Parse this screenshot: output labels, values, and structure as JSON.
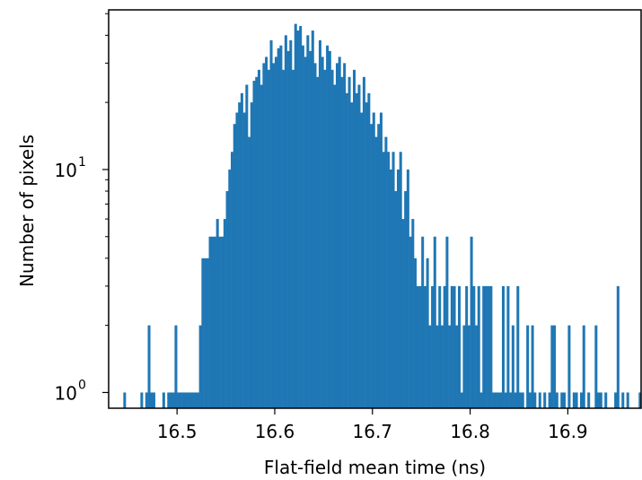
{
  "chart_data": {
    "type": "bar",
    "title": "",
    "xlabel": "Flat-field mean time (ns)",
    "ylabel": "Number of pixels",
    "xlim": [
      16.43,
      16.975
    ],
    "ylim": [
      0.85,
      52
    ],
    "yscale": "log",
    "grid": false,
    "legend": "none",
    "color": "#1f77b4",
    "x_ticks": [
      16.5,
      16.6,
      16.7,
      16.8,
      16.9
    ],
    "x_tick_labels": [
      "16.5",
      "16.6",
      "16.7",
      "16.8",
      "16.9"
    ],
    "y_major_ticks": [
      1,
      10
    ],
    "y_major_tick_labels": [
      {
        "base": "10",
        "exp": "0"
      },
      {
        "base": "10",
        "exp": "1"
      }
    ],
    "y_minor_ticks": [
      2,
      3,
      4,
      5,
      6,
      7,
      8,
      9,
      20,
      30,
      40,
      50
    ],
    "bin_width": 0.0025,
    "bin_edges_start": 16.445,
    "counts": [
      1,
      0,
      0,
      0,
      0,
      0,
      0,
      1,
      0,
      1,
      2,
      1,
      1,
      0,
      0,
      0,
      1,
      0,
      1,
      1,
      1,
      2,
      1,
      1,
      1,
      1,
      1,
      1,
      1,
      1,
      1,
      2,
      4,
      4,
      4,
      5,
      5,
      5,
      6,
      5,
      5,
      6,
      8,
      10,
      12,
      16,
      18,
      20,
      22,
      18,
      24,
      14,
      20,
      25,
      26,
      28,
      24,
      30,
      32,
      28,
      38,
      30,
      32,
      35,
      36,
      28,
      40,
      34,
      38,
      28,
      45,
      42,
      44,
      36,
      32,
      40,
      34,
      42,
      30,
      26,
      38,
      32,
      28,
      36,
      34,
      28,
      24,
      30,
      32,
      26,
      30,
      22,
      26,
      20,
      28,
      22,
      24,
      18,
      26,
      20,
      22,
      16,
      18,
      14,
      16,
      18,
      12,
      14,
      12,
      10,
      12,
      8,
      10,
      12,
      6,
      8,
      10,
      5,
      6,
      4,
      3,
      3,
      5,
      3,
      4,
      2,
      3,
      5,
      2,
      3,
      2,
      3,
      5,
      2,
      3,
      3,
      2,
      3,
      1,
      2,
      3,
      2,
      5,
      3,
      2,
      3,
      1,
      3,
      3,
      3,
      3,
      1,
      1,
      1,
      1,
      3,
      1,
      3,
      1,
      2,
      1,
      3,
      1,
      1,
      0,
      2,
      1,
      2,
      1,
      0,
      1,
      0,
      1,
      0,
      1,
      2,
      2,
      1,
      0,
      1,
      1,
      0,
      2,
      0,
      1,
      1,
      0,
      1,
      2,
      0,
      1,
      0,
      0,
      2,
      1,
      1,
      0,
      1,
      0,
      0,
      0,
      1,
      3,
      0,
      1,
      0,
      1,
      0,
      0,
      0,
      0,
      1,
      0,
      0,
      0,
      0,
      0,
      0,
      0,
      1,
      2,
      1
    ]
  }
}
